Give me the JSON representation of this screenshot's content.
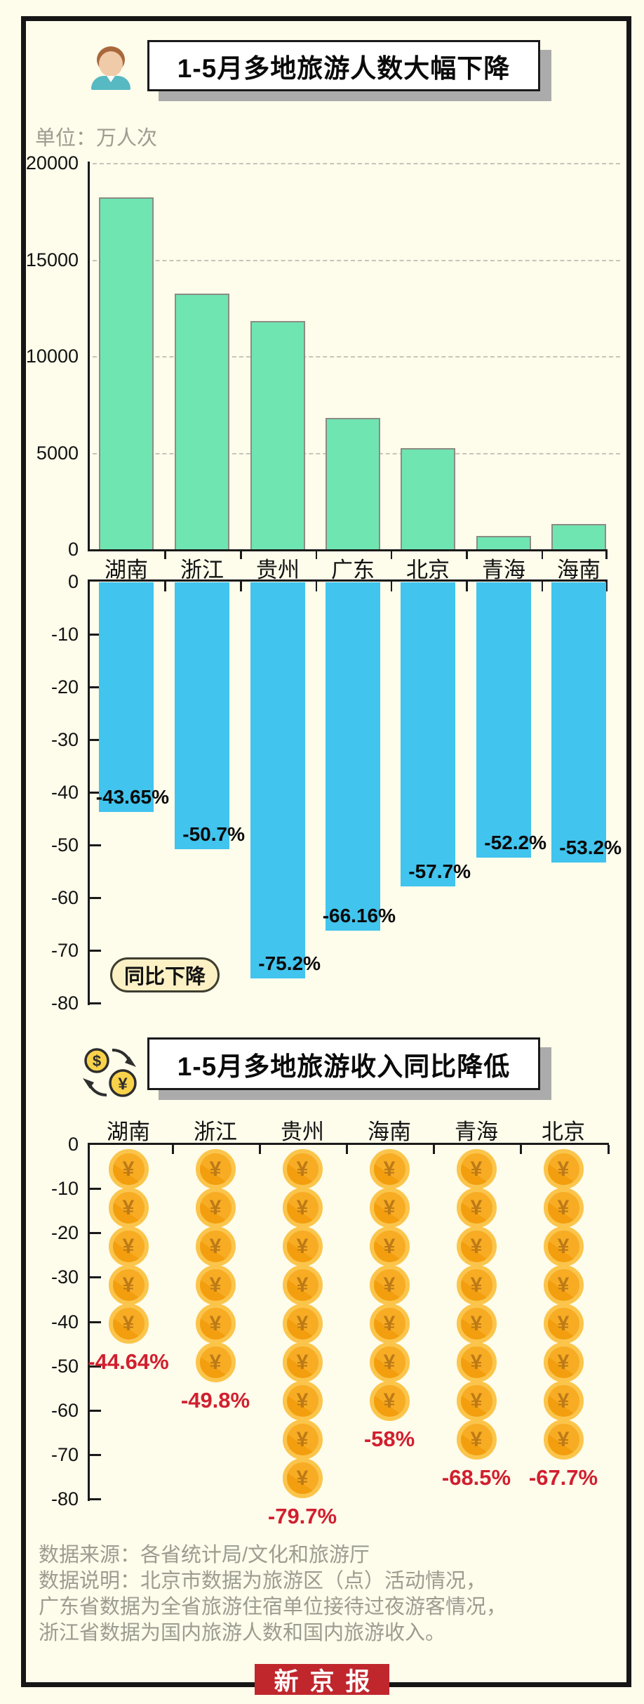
{
  "header": {
    "title": "1-5月多地旅游人数大幅下降",
    "unit_label": "单位：万人次"
  },
  "section2_header": {
    "title": "1-5月多地旅游收入同比降低"
  },
  "badge": {
    "label": "同比下降"
  },
  "footer": {
    "lines": [
      "数据来源：各省统计局/文化和旅游厅",
      "数据说明：北京市数据为旅游区（点）活动情况，",
      "广东省数据为全省旅游住宿单位接待过夜游客情况，",
      "浙江省数据为国内旅游人数和国内旅游收入。"
    ]
  },
  "logo": {
    "text": "新京报"
  },
  "colors": {
    "background": "#FEFCEB",
    "frame": "#161616",
    "visitors_bar": "#6FE5B2",
    "decline_bar": "#41C4EE",
    "coin_gold": "#F6A81F",
    "coin_ring": "#FBC54C",
    "red_label": "#D11F2F",
    "gray_text": "#9C9C90",
    "logo_red": "#C0272D",
    "badge_fill": "#FBF1C5"
  },
  "chart_data": [
    {
      "id": "visitors",
      "type": "bar",
      "title": "1-5月多地旅游人数大幅下降",
      "unit": "万人次",
      "categories": [
        "湖南",
        "浙江",
        "贵州",
        "广东",
        "北京",
        "青海",
        "海南"
      ],
      "values": [
        18200,
        13250,
        11800,
        6800,
        5250,
        700,
        1300
      ],
      "ylim": [
        0,
        20000
      ],
      "yticks": [
        "20000",
        "15000",
        "10000",
        "5000",
        "0"
      ],
      "grid": "horizontal dashed every 5000",
      "legend_position": "none"
    },
    {
      "id": "visitor-decline",
      "type": "bar",
      "title": "同比下降",
      "categories": [
        "湖南",
        "浙江",
        "贵州",
        "广东",
        "北京",
        "青海",
        "海南"
      ],
      "values": [
        -43.65,
        -50.7,
        -75.2,
        -66.16,
        -57.7,
        -52.2,
        -53.2
      ],
      "value_labels": [
        "-43.65%",
        "-50.7%",
        "-75.2%",
        "-66.16%",
        "-57.7%",
        "-52.2%",
        "-53.2%"
      ],
      "ylim": [
        -80,
        0
      ],
      "yticks": [
        "0",
        "-10",
        "-20",
        "-30",
        "-40",
        "-50",
        "-60",
        "-70",
        "-80"
      ],
      "grid": "off"
    },
    {
      "id": "income-decline",
      "type": "pictogram-bar",
      "title": "1-5月多地旅游收入同比降低",
      "symbol": "¥",
      "categories": [
        "湖南",
        "浙江",
        "贵州",
        "海南",
        "青海",
        "北京"
      ],
      "values": [
        -44.64,
        -49.8,
        -79.7,
        -58,
        -68.5,
        -67.7
      ],
      "value_labels": [
        "-44.64%",
        "-49.8%",
        "-79.7%",
        "-58%",
        "-68.5%",
        "-67.7%"
      ],
      "coin_counts": [
        5,
        6,
        9,
        7,
        8,
        8
      ],
      "ylim": [
        -80,
        0
      ],
      "yticks": [
        "0",
        "-10",
        "-20",
        "-30",
        "-40",
        "-50",
        "-60",
        "-70",
        "-80"
      ],
      "grid": "off"
    }
  ]
}
